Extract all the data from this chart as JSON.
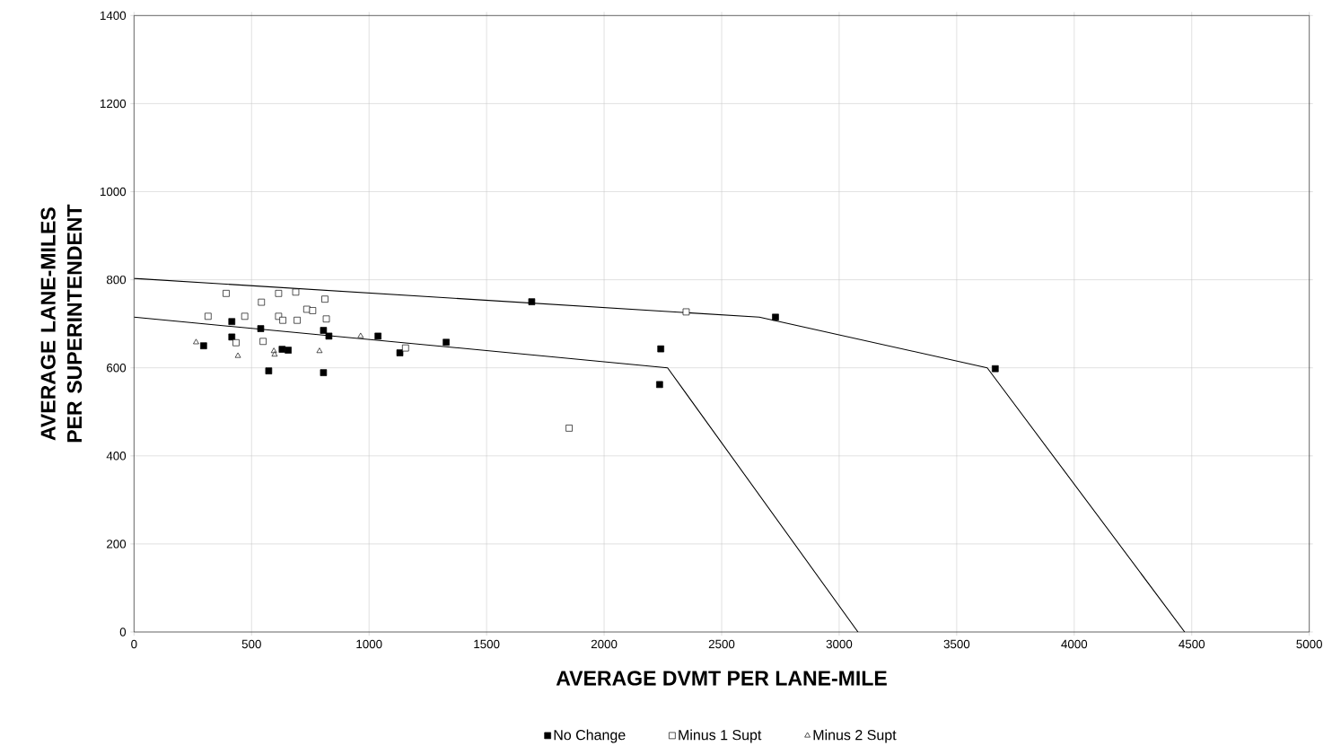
{
  "chart_data": {
    "type": "scatter",
    "xlabel": "AVERAGE DVMT PER LANE-MILE",
    "ylabel": "AVERAGE LANE-MILES PER SUPERINTENDENT",
    "xlim": [
      0,
      5000
    ],
    "ylim": [
      0,
      1400
    ],
    "xticks": [
      0,
      500,
      1000,
      1500,
      2000,
      2500,
      3000,
      3500,
      4000,
      4500,
      5000
    ],
    "yticks": [
      0,
      200,
      400,
      600,
      800,
      1000,
      1200,
      1400
    ],
    "grid": true,
    "legend": "bottom",
    "series": [
      {
        "name": "No Change",
        "color": "#000000",
        "marker": "square",
        "x": [
          296,
          416,
          416,
          539,
          573,
          630,
          656,
          806,
          829,
          806,
          1038,
          1131,
          1328,
          1692,
          2241,
          2236,
          2729,
          3664
        ],
        "values": [
          650,
          705,
          670,
          689,
          593,
          642,
          640,
          685,
          672,
          589,
          672,
          634,
          658,
          750,
          643,
          562,
          715,
          598
        ]
      },
      {
        "name": "Minus 1 Supt",
        "color": "#000000",
        "marker": "square",
        "x": [
          392,
          315,
          471,
          542,
          615,
          688,
          615,
          633,
          694,
          735,
          760,
          812,
          818,
          434,
          549,
          1155,
          2349,
          1851
        ],
        "values": [
          769,
          717,
          717,
          749,
          769,
          772,
          717,
          708,
          708,
          733,
          730,
          756,
          711,
          657,
          660,
          645,
          727,
          463
        ]
      },
      {
        "name": "Minus 2 Supt",
        "color": "#000000",
        "marker": "triangle",
        "x": [
          264,
          442,
          595,
          598,
          789,
          964
        ],
        "values": [
          658,
          627,
          638,
          630,
          638,
          672
        ]
      },
      {
        "type": "line",
        "color": "#000000",
        "marker": "none",
        "x": [
          0,
          2660,
          3630,
          4470
        ],
        "values": [
          803,
          715,
          600,
          0
        ]
      },
      {
        "type": "line",
        "color": "#000000",
        "marker": "none",
        "x": [
          0,
          2270,
          3080
        ],
        "values": [
          715,
          600,
          0
        ]
      }
    ]
  }
}
